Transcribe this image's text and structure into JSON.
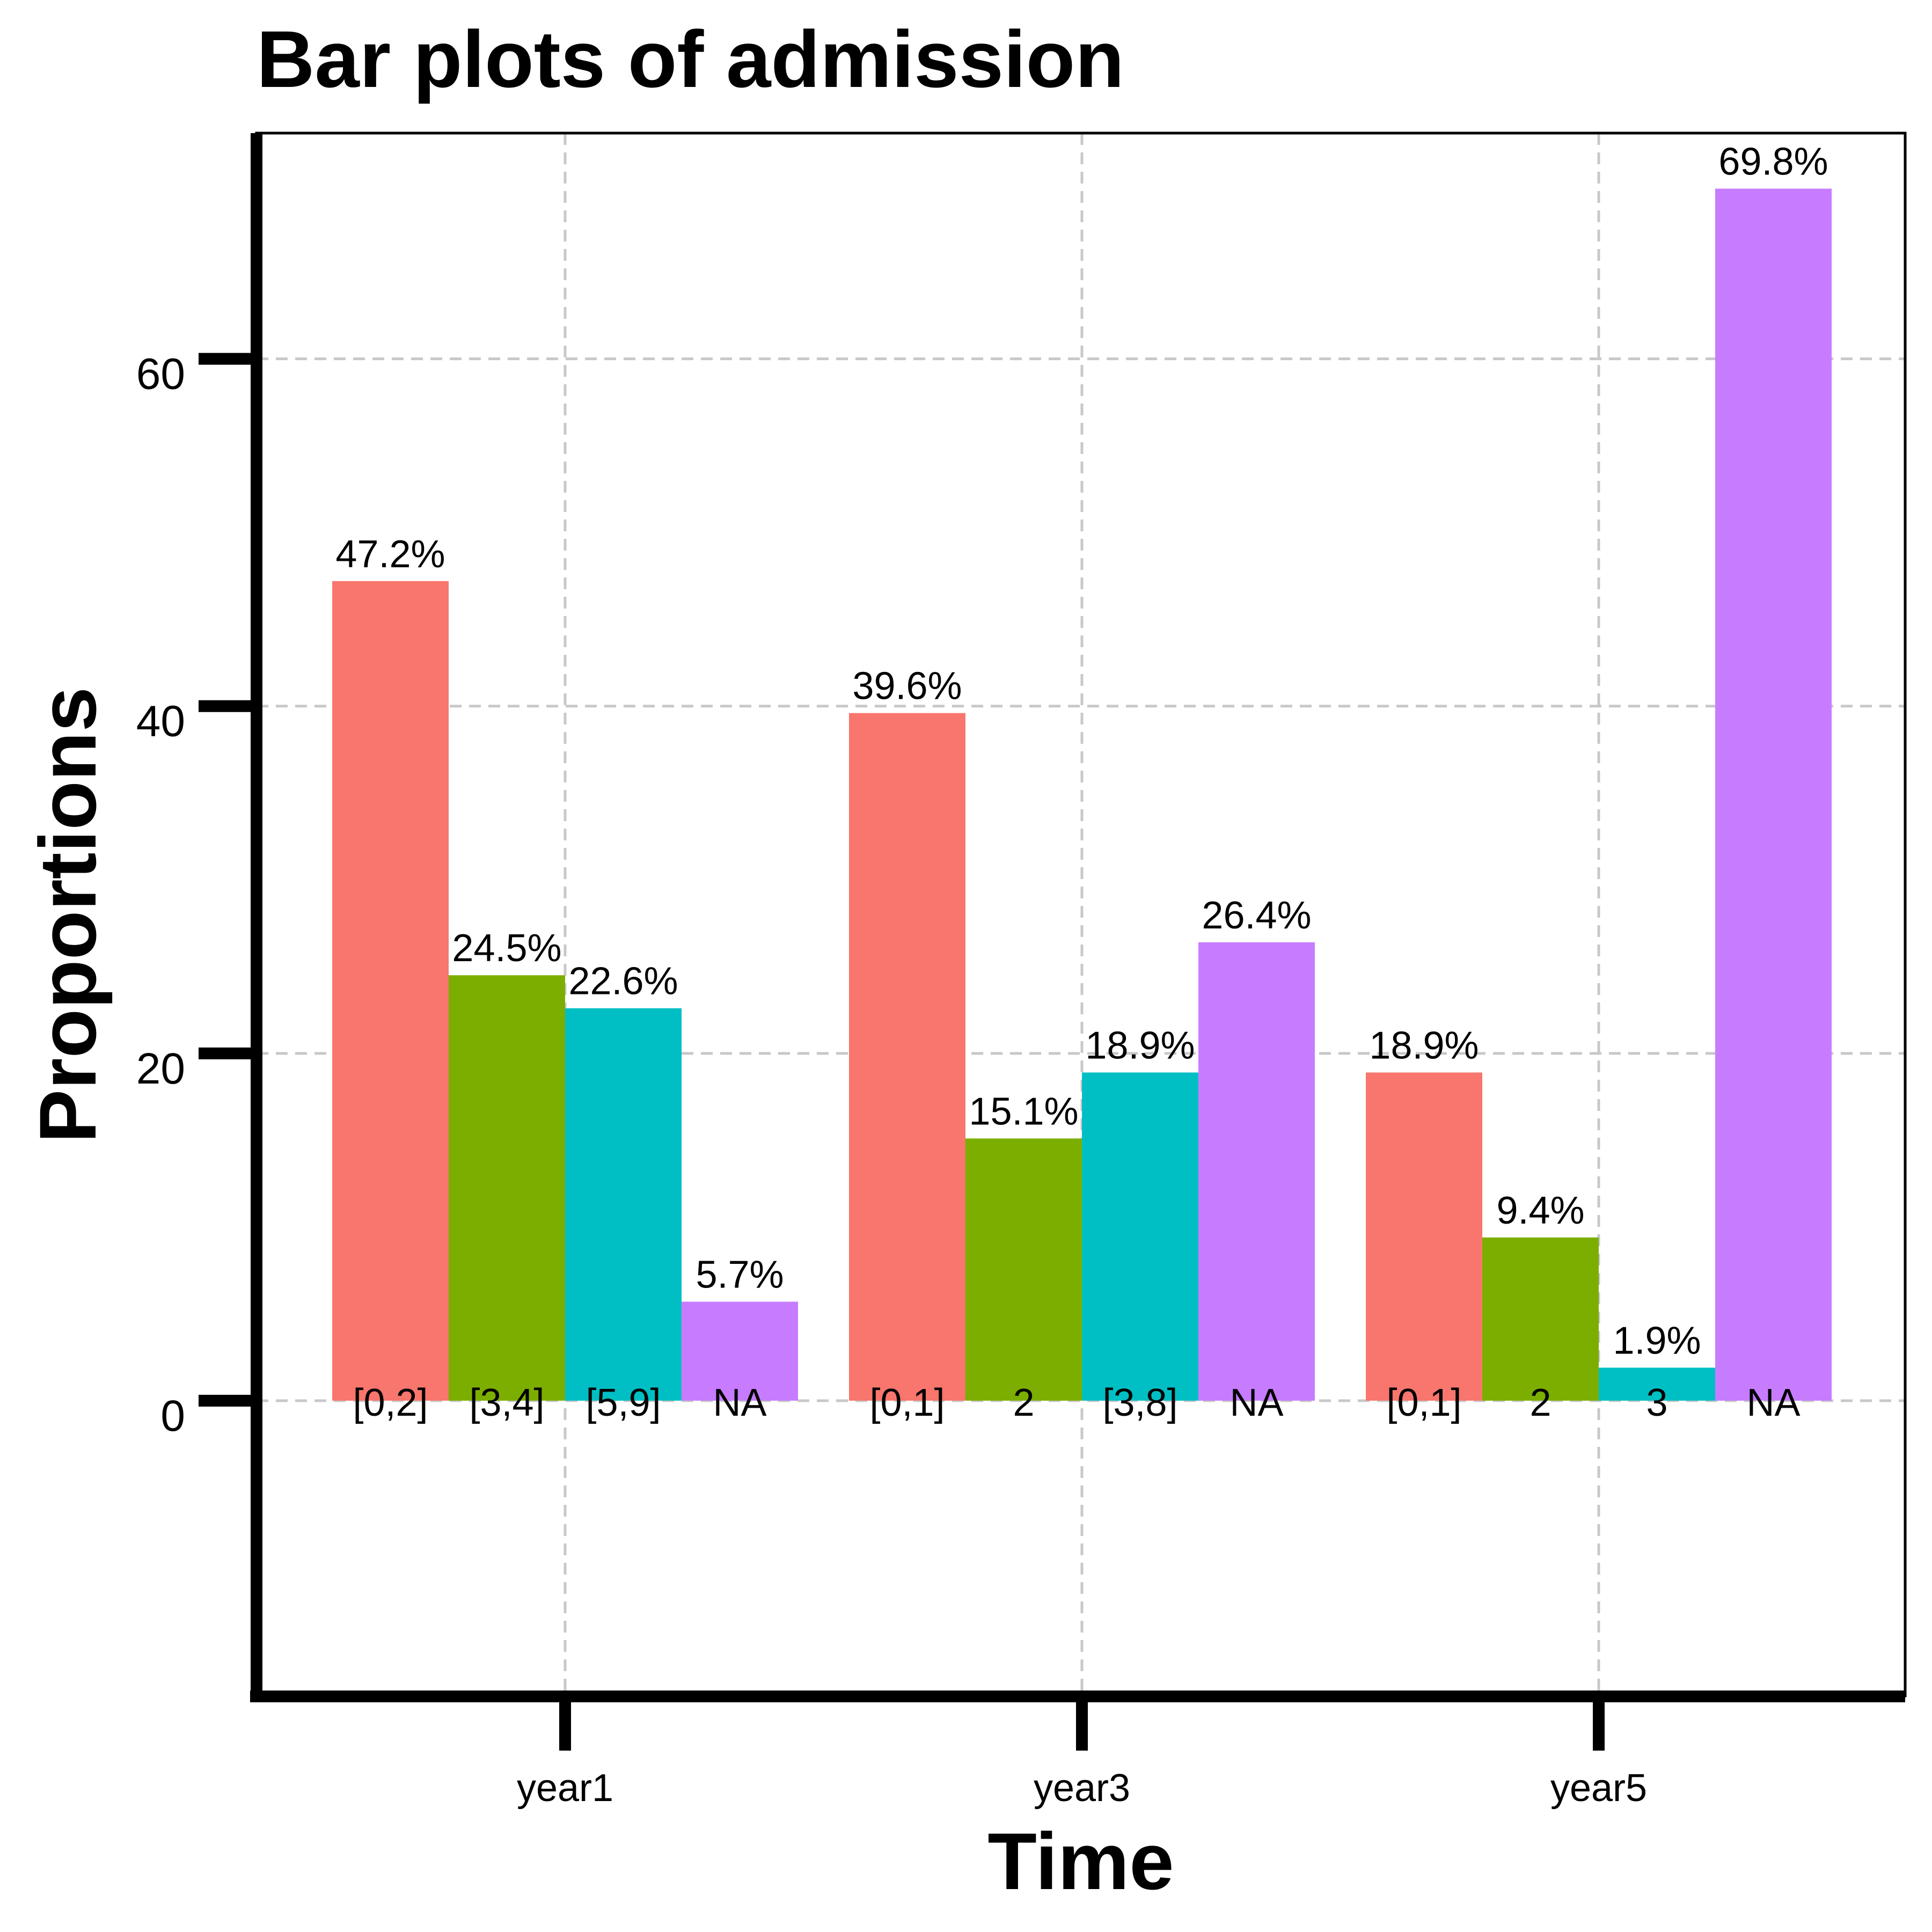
{
  "chart_data": {
    "type": "bar",
    "title": "Bar plots of admission",
    "xlabel": "Time",
    "ylabel": "Proportions",
    "ylim": [
      -17,
      73
    ],
    "yticks": [
      0,
      20,
      40,
      60
    ],
    "grid": true,
    "legend": "none",
    "groups": [
      {
        "name": "year1",
        "bars": [
          {
            "category": "[0,2]",
            "value": 47.2,
            "label": "47.2%",
            "color": "#F8766D"
          },
          {
            "category": "[3,4]",
            "value": 24.5,
            "label": "24.5%",
            "color": "#7CAE00"
          },
          {
            "category": "[5,9]",
            "value": 22.6,
            "label": "22.6%",
            "color": "#00BFC4"
          },
          {
            "category": "NA",
            "value": 5.7,
            "label": "5.7%",
            "color": "#C77CFF"
          }
        ]
      },
      {
        "name": "year3",
        "bars": [
          {
            "category": "[0,1]",
            "value": 39.6,
            "label": "39.6%",
            "color": "#F8766D"
          },
          {
            "category": "2",
            "value": 15.1,
            "label": "15.1%",
            "color": "#7CAE00"
          },
          {
            "category": "[3,8]",
            "value": 18.9,
            "label": "18.9%",
            "color": "#00BFC4"
          },
          {
            "category": "NA",
            "value": 26.4,
            "label": "26.4%",
            "color": "#C77CFF"
          }
        ]
      },
      {
        "name": "year5",
        "bars": [
          {
            "category": "[0,1]",
            "value": 18.9,
            "label": "18.9%",
            "color": "#F8766D"
          },
          {
            "category": "2",
            "value": 9.4,
            "label": "9.4%",
            "color": "#7CAE00"
          },
          {
            "category": "3",
            "value": 1.9,
            "label": "1.9%",
            "color": "#00BFC4"
          },
          {
            "category": "NA",
            "value": 69.8,
            "label": "69.8%",
            "color": "#C77CFF"
          }
        ]
      }
    ]
  }
}
